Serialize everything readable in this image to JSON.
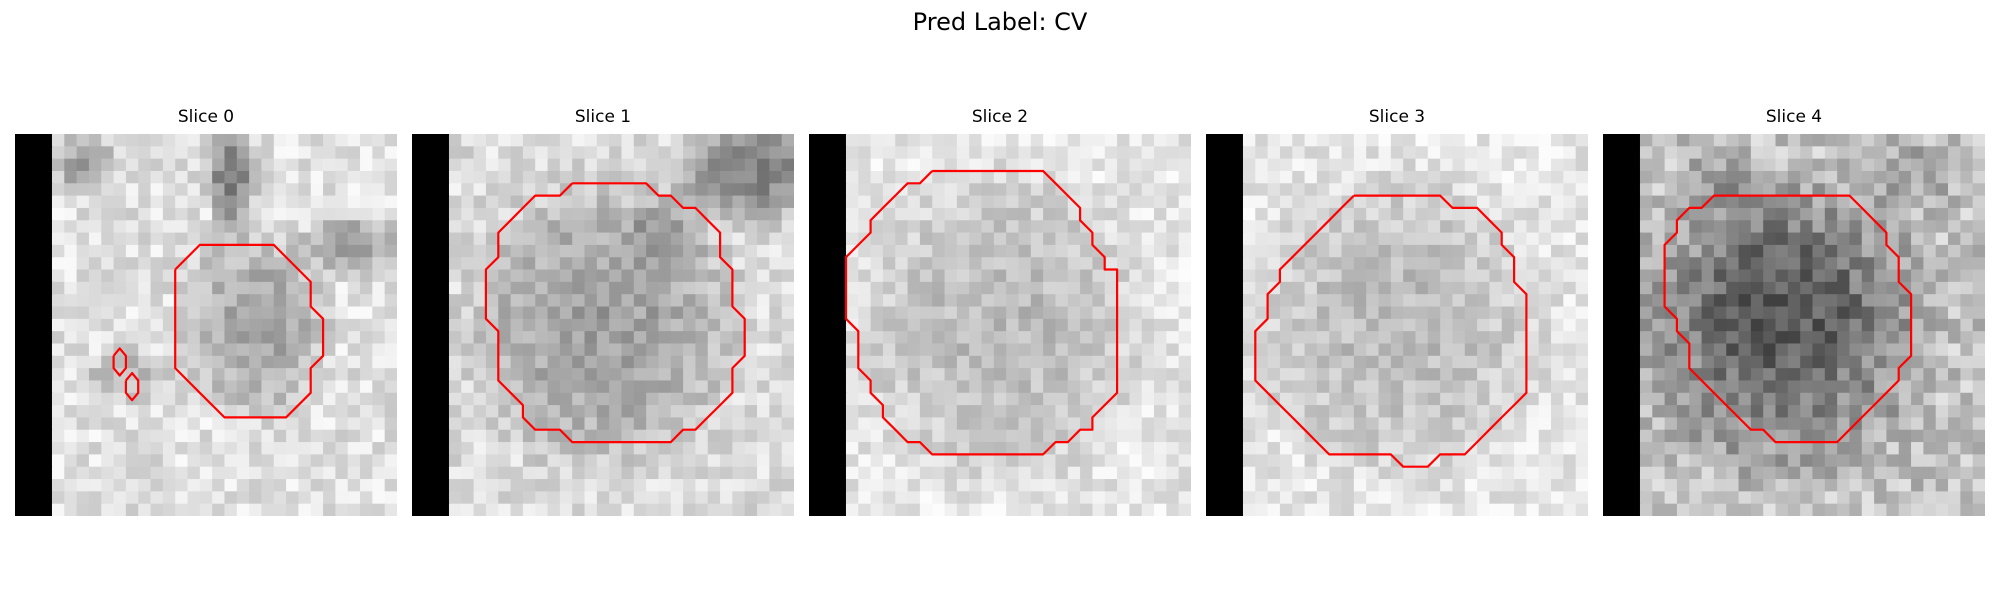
{
  "figure": {
    "title": "Pred Label: CV"
  },
  "panels": [
    {
      "title": "Slice 0",
      "contour_color": "#ff0000"
    },
    {
      "title": "Slice 1",
      "contour_color": "#ff0000"
    },
    {
      "title": "Slice 2",
      "contour_color": "#ff0000"
    },
    {
      "title": "Slice 3",
      "contour_color": "#ff0000"
    },
    {
      "title": "Slice 4",
      "contour_color": "#ff0000"
    }
  ],
  "colors": {
    "background": "#ffffff",
    "padding_bar": "#000000",
    "contour": "#ff0000"
  }
}
